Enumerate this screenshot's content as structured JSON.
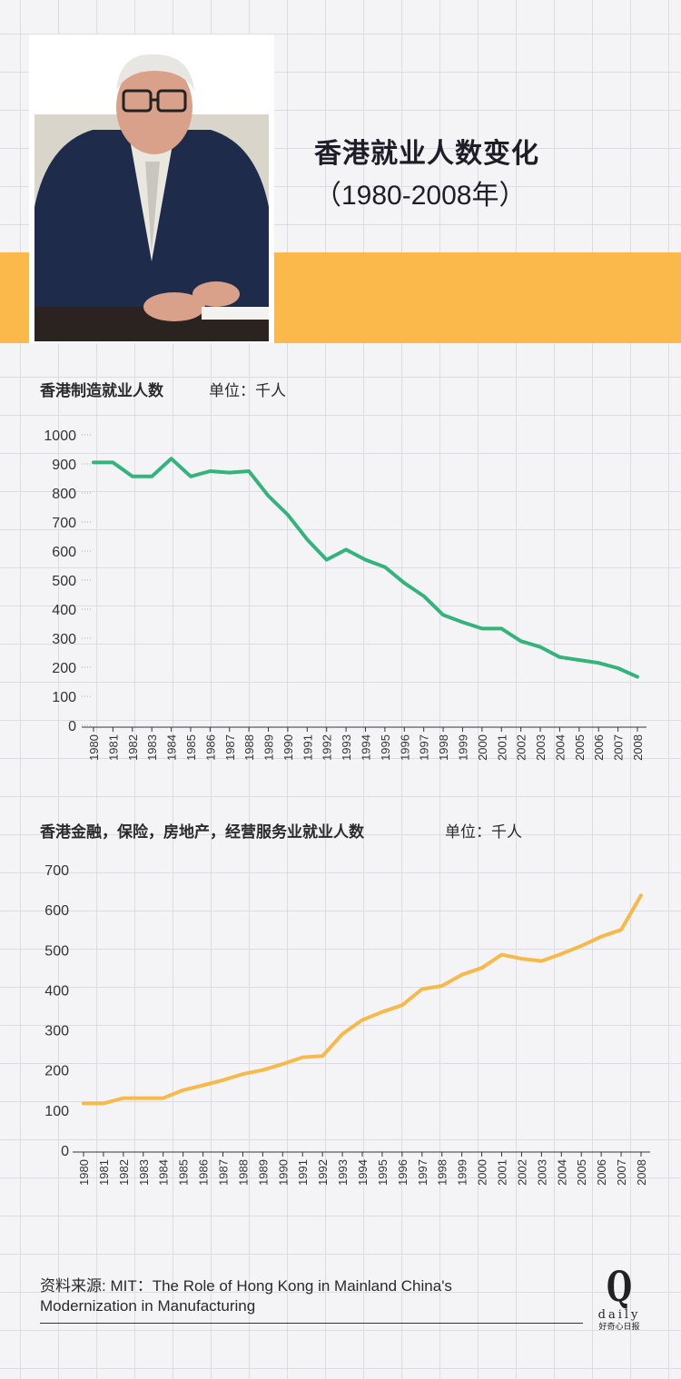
{
  "header": {
    "title": "香港就业人数变化",
    "subtitle": "（1980-2008年）"
  },
  "colors": {
    "accent_band": "#fbb84b",
    "line_manufacturing": "#34b37a",
    "line_services": "#f7b94a"
  },
  "chart_data": [
    {
      "type": "line",
      "title": "香港制造就业人数",
      "unit": "单位：千人",
      "x": [
        "1980",
        "1981",
        "1982",
        "1983",
        "1984",
        "1985",
        "1986",
        "1987",
        "1988",
        "1989",
        "1990",
        "1991",
        "1992",
        "1993",
        "1994",
        "1995",
        "1996",
        "1997",
        "1998",
        "1999",
        "2000",
        "2001",
        "2002",
        "2003",
        "2004",
        "2005",
        "2006",
        "2007",
        "2008"
      ],
      "values": [
        905,
        905,
        857,
        857,
        918,
        857,
        875,
        870,
        875,
        790,
        725,
        640,
        570,
        605,
        570,
        545,
        490,
        445,
        380,
        355,
        333,
        333,
        290,
        270,
        235,
        225,
        215,
        197,
        167
      ],
      "ylim": [
        0,
        1000
      ],
      "yticks": [
        "0",
        "100",
        "200",
        "300",
        "400",
        "500",
        "600",
        "700",
        "800",
        "900",
        "1000"
      ],
      "grid": true,
      "color": "#34b37a"
    },
    {
      "type": "line",
      "title": "香港金融，保险，房地产，经营服务业就业人数",
      "unit": "单位：千人",
      "x": [
        "1980",
        "1981",
        "1982",
        "1983",
        "1984",
        "1985",
        "1986",
        "1987",
        "1988",
        "1989",
        "1990",
        "1991",
        "1992",
        "1993",
        "1994",
        "1995",
        "1996",
        "1997",
        "1998",
        "1999",
        "2000",
        "2001",
        "2002",
        "2003",
        "2004",
        "2005",
        "2006",
        "2007",
        "2008"
      ],
      "values": [
        117,
        117,
        130,
        130,
        130,
        150,
        162,
        175,
        190,
        200,
        215,
        232,
        235,
        290,
        325,
        345,
        362,
        402,
        410,
        438,
        455,
        488,
        478,
        472,
        490,
        510,
        533,
        550,
        636
      ],
      "ylim": [
        0,
        700
      ],
      "yticks": [
        "0",
        "100",
        "200",
        "300",
        "400",
        "500",
        "600",
        "700"
      ],
      "grid": true,
      "color": "#f7b94a"
    }
  ],
  "footer": {
    "source_line1": "资料来源: MIT：The Role of Hong Kong in Mainland China's",
    "source_line2": "Modernization in Manufacturing",
    "logo_letter": "Q",
    "logo_word": "daily",
    "logo_cn": "好奇心日报"
  }
}
